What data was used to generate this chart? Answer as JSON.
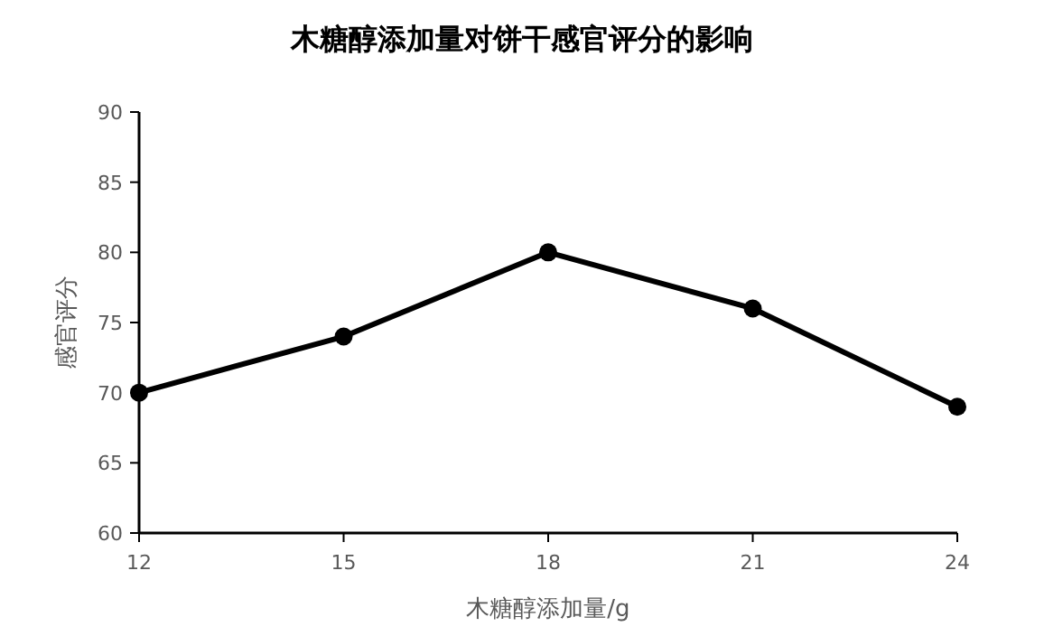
{
  "chart_data": {
    "type": "line",
    "title": "木糖醇添加量对饼干感官评分的影响",
    "xlabel": "木糖醇添加量/g",
    "ylabel": "感官评分",
    "x": [
      12,
      15,
      18,
      21,
      24
    ],
    "series": [
      {
        "color": "#000000",
        "values": [
          70,
          74,
          80,
          76,
          69
        ]
      }
    ],
    "xlim": [
      12,
      24
    ],
    "xticks": [
      12,
      15,
      18,
      21,
      24
    ],
    "ylim": [
      60,
      90
    ],
    "yticks": [
      60,
      65,
      70,
      75,
      80,
      85,
      90
    ],
    "marker": "circle",
    "line_style": "solid",
    "grid": false
  }
}
